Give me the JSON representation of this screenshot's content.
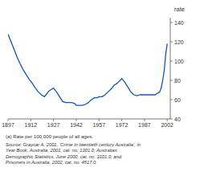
{
  "chart_data": {
    "type": "line",
    "y_label": "rate",
    "x": [
      1897,
      1899,
      1901,
      1903,
      1905,
      1907,
      1909,
      1911,
      1912,
      1913,
      1915,
      1917,
      1919,
      1921,
      1922,
      1924,
      1926,
      1927,
      1929,
      1931,
      1933,
      1935,
      1937,
      1939,
      1941,
      1942,
      1944,
      1946,
      1948,
      1950,
      1952,
      1954,
      1956,
      1957,
      1959,
      1961,
      1963,
      1965,
      1967,
      1969,
      1971,
      1972,
      1974,
      1976,
      1978,
      1980,
      1982,
      1984,
      1986,
      1988,
      1990,
      1992,
      1994,
      1996,
      1997,
      1998,
      1999,
      2000,
      2001,
      2002
    ],
    "values": [
      128,
      120,
      112,
      104,
      97,
      91,
      86,
      81,
      79,
      77,
      72,
      68,
      65,
      63,
      65,
      69,
      71,
      72,
      68,
      63,
      58,
      57,
      57,
      57,
      56,
      54,
      54,
      54,
      55,
      57,
      60,
      62,
      62,
      63,
      63,
      65,
      68,
      71,
      75,
      77,
      80,
      82,
      78,
      73,
      68,
      65,
      64,
      65,
      65,
      65,
      65,
      65,
      65,
      67,
      68,
      72,
      80,
      90,
      107,
      118
    ],
    "color": "#1155cc",
    "xlim": [
      1897,
      2004
    ],
    "ylim": [
      40,
      145
    ],
    "xticks": [
      1897,
      1912,
      1927,
      1942,
      1957,
      1972,
      1987,
      2002
    ],
    "yticks": [
      40,
      60,
      80,
      100,
      120,
      140
    ],
    "grid": false,
    "annotations": [
      "(a) Rate per 100,000 people of all ages.",
      "Source: Graycar A. 2001, ‘Crime in twentieth century Australia’, in\nYear Book, Australia, 2001, cat. no. 1301.0; Australian\nDemographic Statistics, June 2000, cat. no. 3101.0; and\nPrisoners in Australia, 2002, cat. no. 4517.0."
    ]
  }
}
